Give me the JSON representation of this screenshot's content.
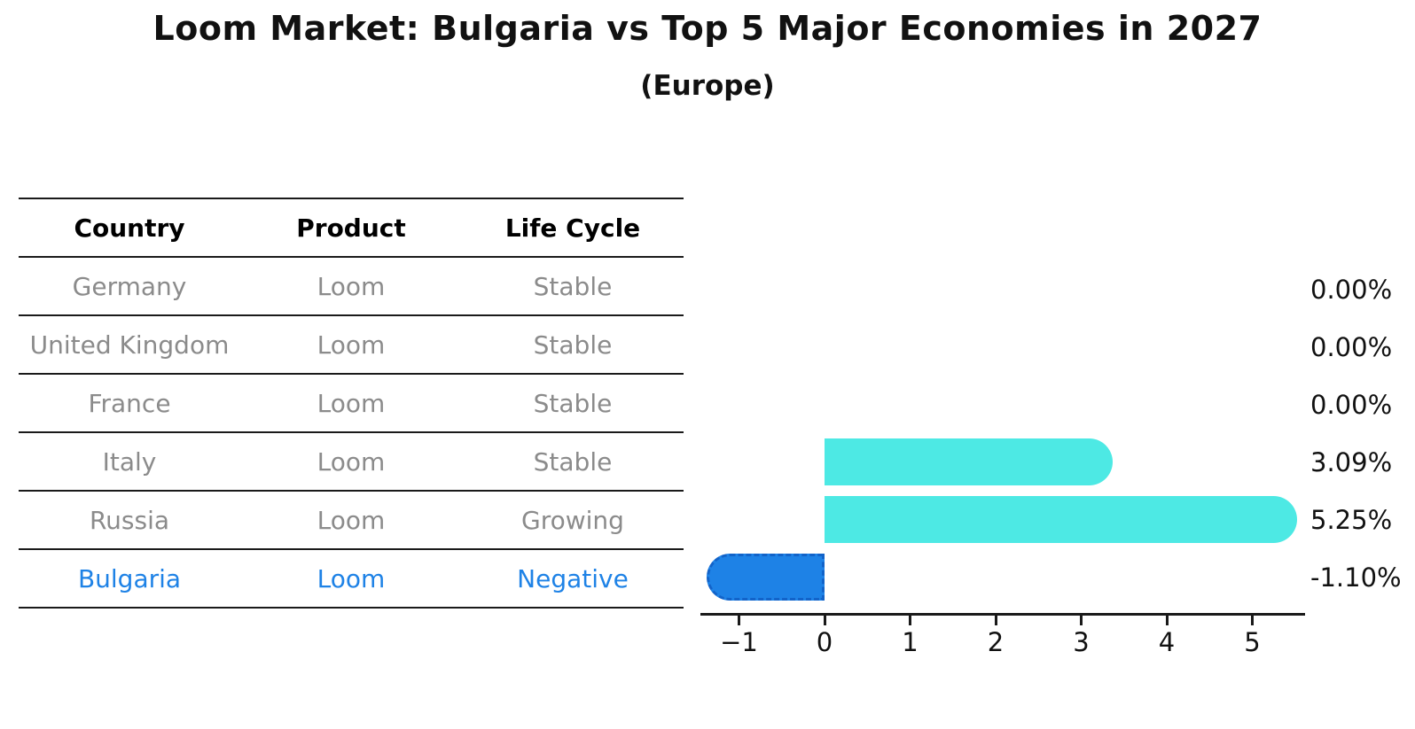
{
  "table": {
    "headers": {
      "country": "Country",
      "product": "Product",
      "life_cycle": "Life Cycle"
    },
    "rows": [
      {
        "country": "Germany",
        "product": "Loom",
        "life_cycle": "Stable",
        "highlighted": false
      },
      {
        "country": "United Kingdom",
        "product": "Loom",
        "life_cycle": "Stable",
        "highlighted": false
      },
      {
        "country": "France",
        "product": "Loom",
        "life_cycle": "Stable",
        "highlighted": false
      },
      {
        "country": "Italy",
        "product": "Loom",
        "life_cycle": "Stable",
        "highlighted": false
      },
      {
        "country": "Russia",
        "product": "Loom",
        "life_cycle": "Growing",
        "highlighted": false
      },
      {
        "country": "Bulgaria",
        "product": "Loom",
        "life_cycle": "Negative",
        "highlighted": true
      }
    ]
  },
  "chart_data": {
    "type": "bar",
    "orientation": "horizontal",
    "title": "Loom Market: Bulgaria vs Top 5 Major Economies in 2027",
    "subtitle": "(Europe)",
    "categories": [
      "Germany",
      "United Kingdom",
      "France",
      "Italy",
      "Russia",
      "Bulgaria"
    ],
    "values": [
      0.0,
      0.0,
      0.0,
      3.09,
      5.25,
      -1.1
    ],
    "value_labels": [
      "0.00%",
      "0.00%",
      "0.00%",
      "3.09%",
      "5.25%",
      "-1.10%"
    ],
    "x_ticks": [
      -1,
      0,
      1,
      2,
      3,
      4,
      5
    ],
    "x_tick_labels": [
      "−1",
      "0",
      "1",
      "2",
      "3",
      "4",
      "5"
    ],
    "xlim": [
      -1.5,
      5.62
    ],
    "grid": false,
    "legend": "none",
    "highlight_index": 5,
    "colors": {
      "bar_positive": "#4DE9E4",
      "bar_highlight": "#1E82E6",
      "highlight_text": "#1E82E6",
      "muted_text": "#8b8b8b",
      "axis": "#1a1a1a"
    }
  }
}
